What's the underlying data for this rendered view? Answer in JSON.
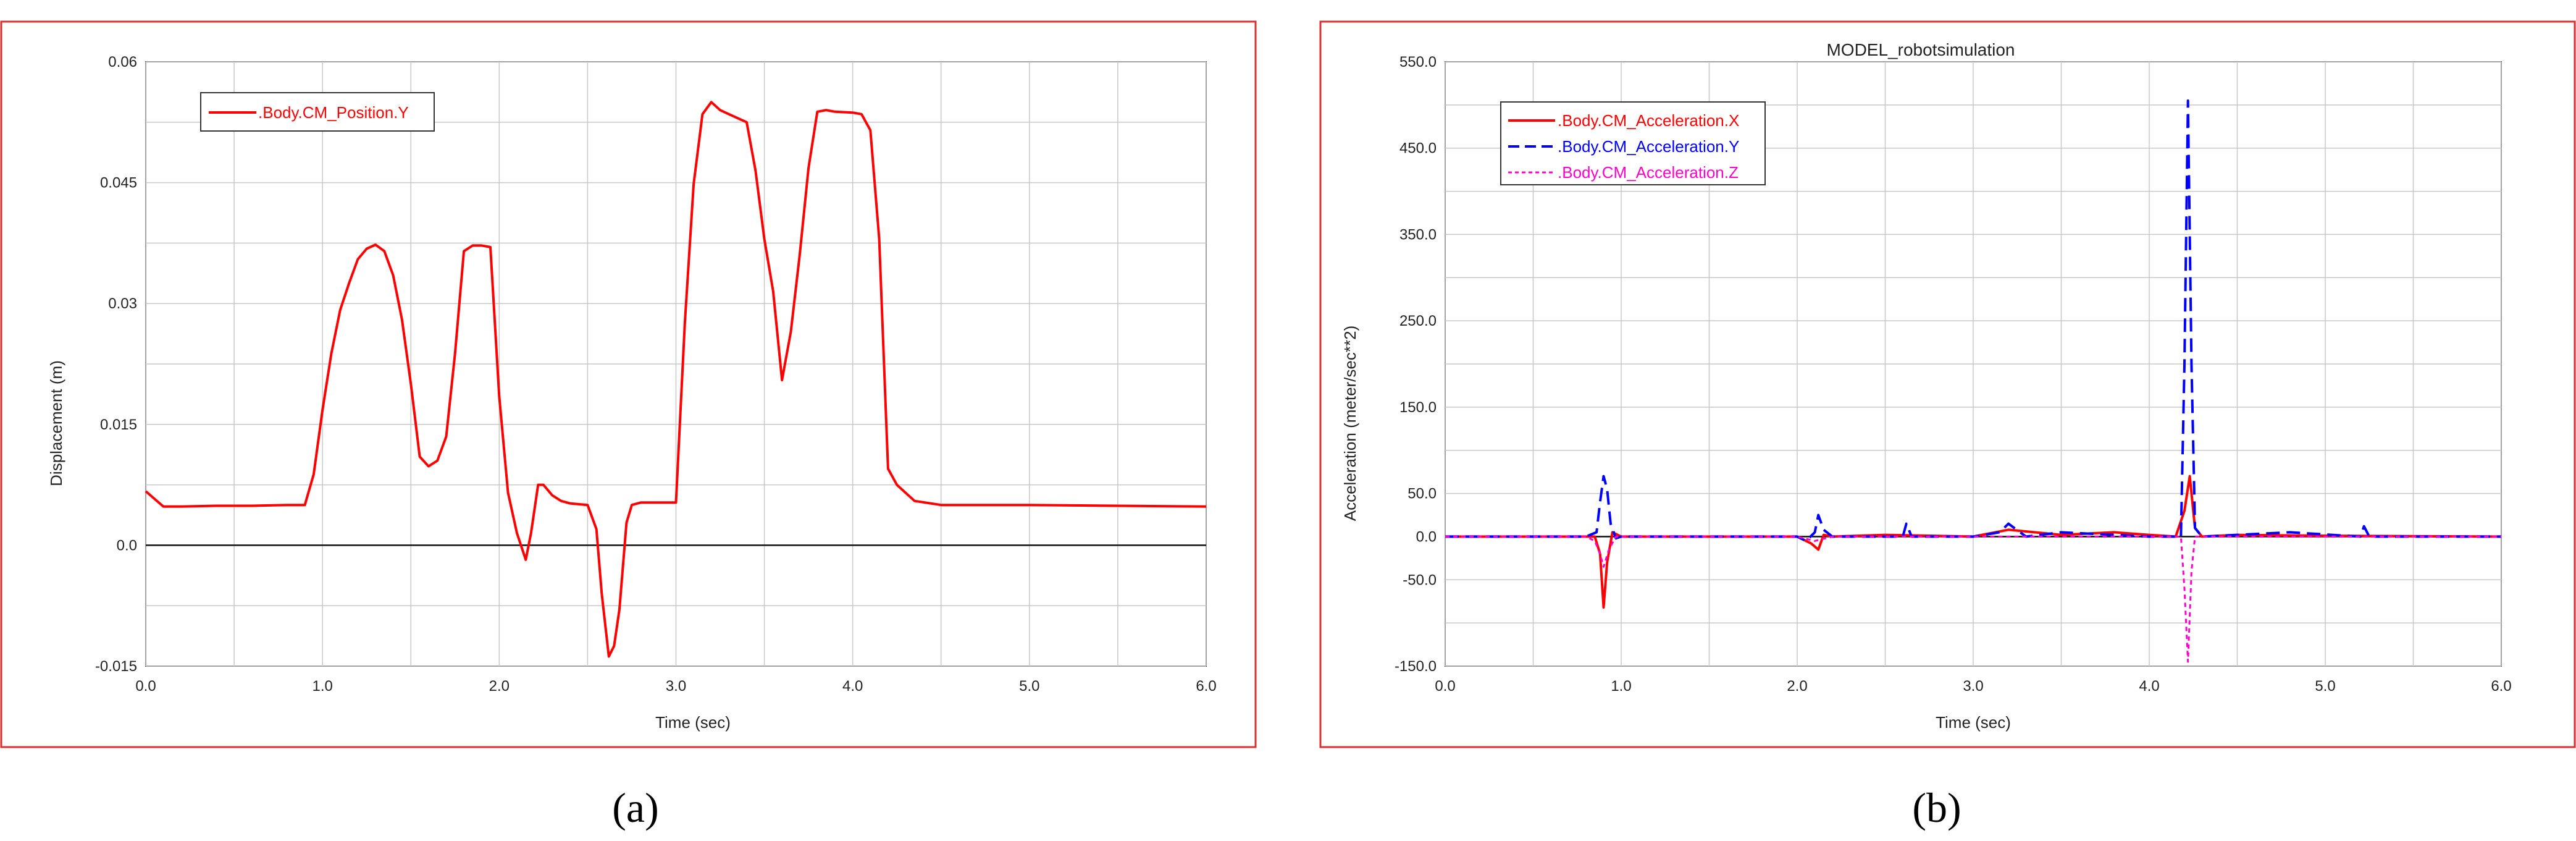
{
  "colors": {
    "red": "#ff0000",
    "blue": "#0000ff",
    "magenta": "#ff00cc",
    "frame": "#d93030",
    "grid": "#c8c8c8"
  },
  "chart_data": [
    {
      "panel_label": "(a)",
      "type": "line",
      "title": "",
      "xlabel": "Time (sec)",
      "ylabel": "Displacement (m)",
      "xlim": [
        0.0,
        6.0
      ],
      "ylim": [
        -0.015,
        0.06
      ],
      "xticks": [
        "0.0",
        "1.0",
        "2.0",
        "3.0",
        "4.0",
        "5.0",
        "6.0"
      ],
      "yticks": [
        "-0.015",
        "0.0",
        "0.015",
        "0.03",
        "0.045",
        "0.06"
      ],
      "grid": true,
      "legend": "top-left",
      "series": [
        {
          "name": ".Body.CM_Position.Y",
          "color": "#ff0000",
          "dash": "solid",
          "x": [
            0.0,
            0.1,
            0.2,
            0.4,
            0.6,
            0.8,
            0.9,
            0.95,
            1.0,
            1.05,
            1.1,
            1.15,
            1.2,
            1.25,
            1.3,
            1.35,
            1.4,
            1.45,
            1.5,
            1.55,
            1.6,
            1.65,
            1.7,
            1.75,
            1.8,
            1.85,
            1.9,
            1.95,
            2.0,
            2.05,
            2.1,
            2.15,
            2.18,
            2.22,
            2.25,
            2.3,
            2.35,
            2.4,
            2.5,
            2.55,
            2.58,
            2.62,
            2.65,
            2.68,
            2.72,
            2.75,
            2.8,
            2.9,
            3.0,
            3.05,
            3.1,
            3.15,
            3.2,
            3.25,
            3.3,
            3.4,
            3.45,
            3.5,
            3.55,
            3.6,
            3.65,
            3.7,
            3.75,
            3.8,
            3.85,
            3.9,
            4.0,
            4.05,
            4.1,
            4.15,
            4.2,
            4.25,
            4.35,
            4.5,
            5.0,
            6.0
          ],
          "y": [
            0.0067,
            0.0048,
            0.0048,
            0.0049,
            0.0049,
            0.005,
            0.005,
            0.0088,
            0.0168,
            0.0238,
            0.0292,
            0.0325,
            0.0355,
            0.0368,
            0.0373,
            0.0365,
            0.0335,
            0.028,
            0.02,
            0.011,
            0.0098,
            0.0105,
            0.0135,
            0.0238,
            0.0365,
            0.0372,
            0.0372,
            0.037,
            0.0185,
            0.0065,
            0.0015,
            -0.0018,
            0.0015,
            0.0075,
            0.0075,
            0.0062,
            0.0055,
            0.0052,
            0.005,
            0.002,
            -0.006,
            -0.0138,
            -0.0125,
            -0.008,
            0.0028,
            0.005,
            0.0053,
            0.0053,
            0.0053,
            0.0275,
            0.0448,
            0.0535,
            0.055,
            0.054,
            0.0535,
            0.0525,
            0.0465,
            0.038,
            0.0315,
            0.0205,
            0.0265,
            0.036,
            0.0468,
            0.0538,
            0.054,
            0.0538,
            0.0537,
            0.0535,
            0.0515,
            0.038,
            0.0095,
            0.0075,
            0.0055,
            0.005,
            0.005,
            0.0048
          ]
        }
      ]
    },
    {
      "panel_label": "(b)",
      "type": "line",
      "title": "MODEL_robotsimulation",
      "xlabel": "Time (sec)",
      "ylabel": "Acceleration (meter/sec**2)",
      "xlim": [
        0.0,
        6.0
      ],
      "ylim": [
        -150.0,
        550.0
      ],
      "xticks": [
        "0.0",
        "1.0",
        "2.0",
        "3.0",
        "4.0",
        "5.0",
        "6.0"
      ],
      "yticks": [
        "-150.0",
        "-50.0",
        "0.0",
        "50.0",
        "150.0",
        "250.0",
        "350.0",
        "450.0",
        "550.0"
      ],
      "grid": true,
      "legend": "top-left",
      "series": [
        {
          "name": ".Body.CM_Acceleration.X",
          "color": "#ff0000",
          "dash": "solid",
          "x": [
            0.0,
            0.5,
            0.85,
            0.88,
            0.9,
            0.92,
            0.95,
            1.0,
            1.5,
            2.0,
            2.08,
            2.12,
            2.15,
            2.2,
            2.5,
            3.0,
            3.2,
            3.5,
            3.8,
            4.0,
            4.15,
            4.2,
            4.23,
            4.26,
            4.3,
            4.5,
            5.0,
            6.0
          ],
          "y": [
            0,
            0,
            0,
            -20,
            -82,
            -30,
            5,
            0,
            0,
            0,
            -8,
            -15,
            2,
            0,
            2,
            0,
            8,
            2,
            5,
            2,
            0,
            30,
            70,
            10,
            0,
            2,
            1,
            0
          ]
        },
        {
          "name": ".Body.CM_Acceleration.Y",
          "color": "#0000ff",
          "dash": "dashed",
          "x": [
            0.0,
            0.8,
            0.86,
            0.88,
            0.9,
            0.92,
            0.94,
            0.97,
            1.0,
            1.5,
            2.0,
            2.05,
            2.1,
            2.12,
            2.15,
            2.2,
            2.6,
            2.62,
            2.65,
            3.0,
            3.15,
            3.2,
            3.3,
            3.5,
            4.0,
            4.18,
            4.2,
            4.22,
            4.24,
            4.26,
            4.3,
            4.8,
            5.2,
            5.22,
            5.25,
            6.0
          ],
          "y": [
            0,
            0,
            5,
            40,
            70,
            55,
            15,
            -2,
            0,
            0,
            0,
            -5,
            5,
            25,
            8,
            0,
            0,
            15,
            0,
            0,
            5,
            15,
            0,
            5,
            0,
            0,
            200,
            505,
            200,
            10,
            0,
            5,
            0,
            12,
            0,
            0
          ]
        },
        {
          "name": ".Body.CM_Acceleration.Z",
          "color": "#ff00cc",
          "dash": "dotted",
          "x": [
            0.0,
            0.8,
            0.85,
            0.88,
            0.9,
            0.93,
            0.97,
            1.0,
            2.0,
            2.1,
            2.2,
            3.0,
            4.0,
            4.18,
            4.2,
            4.22,
            4.24,
            4.26,
            4.3,
            5.0,
            6.0
          ],
          "y": [
            0,
            0,
            -5,
            -20,
            -35,
            -15,
            0,
            0,
            0,
            -5,
            0,
            0,
            0,
            0,
            -60,
            -145,
            -40,
            0,
            0,
            0,
            0
          ]
        }
      ]
    }
  ]
}
